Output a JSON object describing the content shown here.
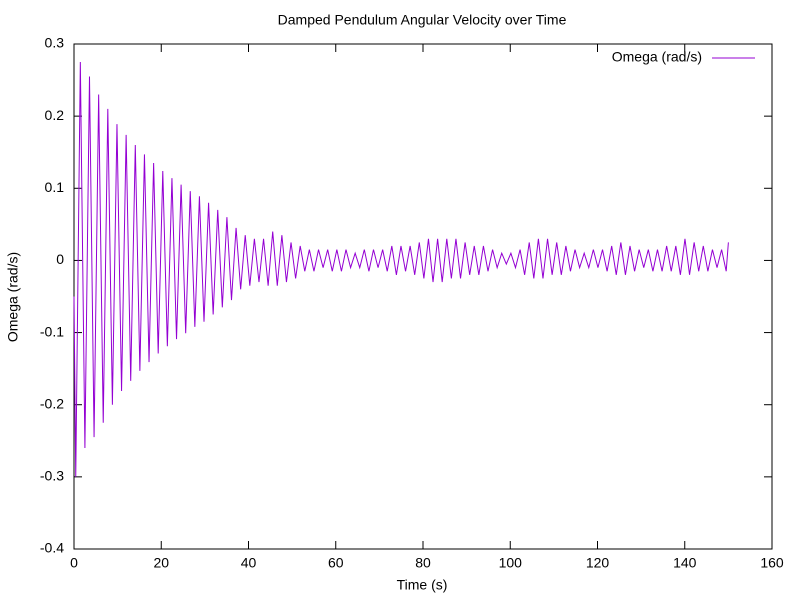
{
  "chart_data": {
    "type": "line",
    "title": "Damped Pendulum Angular Velocity over Time",
    "x_label": "Time (s)",
    "y_label": "Omega (rad/s)",
    "xlim": [
      0,
      160
    ],
    "xticks": [
      0,
      20,
      40,
      60,
      80,
      100,
      120,
      140,
      160
    ],
    "ylim": [
      -0.4,
      0.3
    ],
    "yticks": [
      -0.4,
      -0.3,
      -0.2,
      -0.1,
      0,
      0.1,
      0.2,
      0.3
    ],
    "legend": "top-right",
    "x": [
      0,
      0.4,
      1.45,
      2.5,
      3.55,
      4.6,
      5.65,
      6.7,
      7.75,
      8.8,
      9.85,
      10.9,
      11.95,
      13.0,
      14.05,
      15.1,
      16.15,
      17.2,
      18.25,
      19.3,
      20.35,
      21.4,
      22.45,
      23.5,
      24.55,
      25.6,
      26.65,
      27.7,
      28.75,
      29.8,
      30.85,
      31.9,
      32.95,
      34.0,
      35.05,
      36.1,
      37.15,
      38.2,
      39.25,
      40.3,
      41.35,
      42.4,
      43.45,
      44.5,
      45.55,
      46.6,
      47.65,
      48.7,
      49.75,
      50.8,
      51.85,
      52.9,
      53.95,
      55.0,
      56.05,
      57.1,
      58.15,
      59.2,
      60.25,
      61.3,
      62.35,
      63.4,
      64.45,
      65.5,
      66.55,
      67.6,
      68.65,
      69.7,
      70.75,
      71.8,
      72.85,
      73.9,
      74.95,
      76.0,
      77.05,
      78.1,
      79.15,
      80.2,
      81.25,
      82.3,
      83.35,
      84.4,
      85.45,
      86.5,
      87.55,
      88.6,
      89.65,
      90.7,
      91.75,
      92.8,
      93.85,
      94.9,
      95.95,
      97.0,
      98.05,
      99.1,
      100.15,
      101.2,
      102.25,
      103.3,
      104.35,
      105.4,
      106.45,
      107.5,
      108.55,
      109.6,
      110.65,
      111.7,
      112.75,
      113.8,
      114.85,
      115.9,
      116.95,
      118.0,
      119.05,
      120.1,
      121.15,
      122.2,
      123.25,
      124.3,
      125.35,
      126.4,
      127.45,
      128.5,
      129.55,
      130.6,
      131.65,
      132.7,
      133.75,
      134.8,
      135.85,
      136.9,
      137.95,
      139.0,
      140.05,
      141.1,
      142.15,
      143.2,
      144.25,
      145.3,
      146.35,
      147.4,
      148.45,
      149.5,
      150
    ],
    "series": [
      {
        "name": "Omega (rad/s)",
        "color": "#9400d3",
        "values": [
          -0.05,
          -0.3,
          0.275,
          -0.26,
          0.255,
          -0.245,
          0.23,
          -0.225,
          0.21,
          -0.2,
          0.189,
          -0.181,
          0.174,
          -0.167,
          0.16,
          -0.153,
          0.147,
          -0.141,
          0.135,
          -0.129,
          0.124,
          -0.119,
          0.114,
          -0.109,
          0.105,
          -0.101,
          0.096,
          -0.092,
          0.089,
          -0.085,
          0.08,
          -0.075,
          0.07,
          -0.065,
          0.06,
          -0.055,
          0.045,
          -0.04,
          0.035,
          -0.035,
          0.03,
          -0.03,
          0.03,
          -0.035,
          0.04,
          -0.035,
          0.035,
          -0.03,
          0.025,
          -0.025,
          0.02,
          -0.015,
          0.015,
          -0.015,
          0.015,
          -0.01,
          0.015,
          -0.015,
          0.015,
          -0.015,
          0.015,
          -0.01,
          0.01,
          -0.01,
          0.015,
          -0.015,
          0.015,
          -0.01,
          0.015,
          -0.015,
          0.02,
          -0.02,
          0.02,
          -0.015,
          0.02,
          -0.02,
          0.025,
          -0.025,
          0.03,
          -0.03,
          0.03,
          -0.03,
          0.03,
          -0.025,
          0.03,
          -0.025,
          0.025,
          -0.02,
          0.02,
          -0.02,
          0.02,
          -0.015,
          0.015,
          -0.01,
          0.01,
          -0.005,
          0.01,
          -0.01,
          0.015,
          -0.02,
          0.025,
          -0.025,
          0.03,
          -0.025,
          0.03,
          -0.02,
          0.025,
          -0.02,
          0.02,
          -0.015,
          0.015,
          -0.01,
          0.01,
          -0.01,
          0.015,
          -0.01,
          0.015,
          -0.015,
          0.02,
          -0.02,
          0.025,
          -0.02,
          0.02,
          -0.015,
          0.015,
          -0.01,
          0.015,
          -0.015,
          0.015,
          -0.015,
          0.02,
          -0.015,
          0.02,
          -0.02,
          0.03,
          -0.02,
          0.025,
          -0.015,
          0.02,
          -0.015,
          0.015,
          -0.01,
          0.015,
          -0.015,
          0.025
        ]
      }
    ]
  }
}
